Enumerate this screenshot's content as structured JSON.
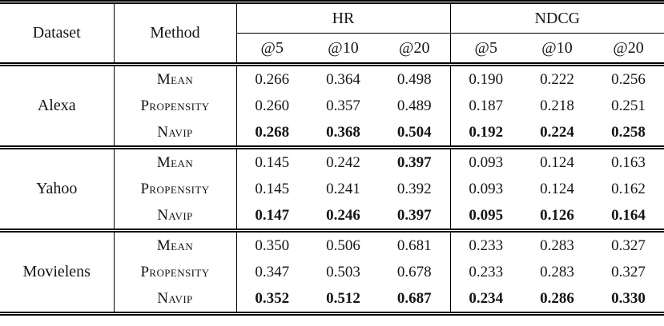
{
  "table": {
    "col_headers": {
      "dataset": "Dataset",
      "method": "Method",
      "hr": "HR",
      "ndcg": "NDCG",
      "at_labels": [
        "@5",
        "@10",
        "@20"
      ]
    },
    "groups": [
      {
        "dataset": "Alexa",
        "rows": [
          {
            "method": "Mean",
            "values": [
              "0.266",
              "0.364",
              "0.498",
              "0.190",
              "0.222",
              "0.256"
            ],
            "bold": [
              0,
              0,
              0,
              0,
              0,
              0
            ]
          },
          {
            "method": "Propensity",
            "values": [
              "0.260",
              "0.357",
              "0.489",
              "0.187",
              "0.218",
              "0.251"
            ],
            "bold": [
              0,
              0,
              0,
              0,
              0,
              0
            ]
          },
          {
            "method": "Navip",
            "values": [
              "0.268",
              "0.368",
              "0.504",
              "0.192",
              "0.224",
              "0.258"
            ],
            "bold": [
              1,
              1,
              1,
              1,
              1,
              1
            ]
          }
        ]
      },
      {
        "dataset": "Yahoo",
        "rows": [
          {
            "method": "Mean",
            "values": [
              "0.145",
              "0.242",
              "0.397",
              "0.093",
              "0.124",
              "0.163"
            ],
            "bold": [
              0,
              0,
              1,
              0,
              0,
              0
            ]
          },
          {
            "method": "Propensity",
            "values": [
              "0.145",
              "0.241",
              "0.392",
              "0.093",
              "0.124",
              "0.162"
            ],
            "bold": [
              0,
              0,
              0,
              0,
              0,
              0
            ]
          },
          {
            "method": "Navip",
            "values": [
              "0.147",
              "0.246",
              "0.397",
              "0.095",
              "0.126",
              "0.164"
            ],
            "bold": [
              1,
              1,
              1,
              1,
              1,
              1
            ]
          }
        ]
      },
      {
        "dataset": "Movielens",
        "rows": [
          {
            "method": "Mean",
            "values": [
              "0.350",
              "0.506",
              "0.681",
              "0.233",
              "0.283",
              "0.327"
            ],
            "bold": [
              0,
              0,
              0,
              0,
              0,
              0
            ]
          },
          {
            "method": "Propensity",
            "values": [
              "0.347",
              "0.503",
              "0.678",
              "0.233",
              "0.283",
              "0.327"
            ],
            "bold": [
              0,
              0,
              0,
              0,
              0,
              0
            ]
          },
          {
            "method": "Navip",
            "values": [
              "0.352",
              "0.512",
              "0.687",
              "0.234",
              "0.286",
              "0.330"
            ],
            "bold": [
              1,
              1,
              1,
              1,
              1,
              1
            ]
          }
        ]
      }
    ]
  },
  "colors": {
    "text": "#151515",
    "rule": "#000000",
    "background": "#ffffff"
  }
}
